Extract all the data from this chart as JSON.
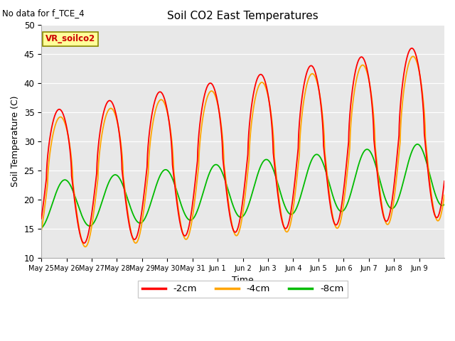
{
  "title": "Soil CO2 East Temperatures",
  "xlabel": "Time",
  "ylabel": "Soil Temperature (C)",
  "no_data_text": "No data for f_TCE_4",
  "annotation_text": "VR_soilco2",
  "ylim": [
    10,
    50
  ],
  "yticks": [
    10,
    15,
    20,
    25,
    30,
    35,
    40,
    45,
    50
  ],
  "background_color": "#e8e8e8",
  "line_colors": {
    "-2cm": "#ff0000",
    "-4cm": "#ffa500",
    "-8cm": "#00bb00"
  },
  "legend_labels": [
    "-2cm",
    "-4cm",
    "-8cm"
  ],
  "x_tick_labels": [
    "May 25",
    "May 26",
    "May 27",
    "May 28",
    "May 29",
    "May 30",
    "May 31",
    "Jun 1",
    "Jun 2",
    "Jun 3",
    "Jun 4",
    "Jun 5",
    "Jun 6",
    "Jun 7",
    "Jun 8",
    "Jun 9"
  ],
  "num_days": 16
}
